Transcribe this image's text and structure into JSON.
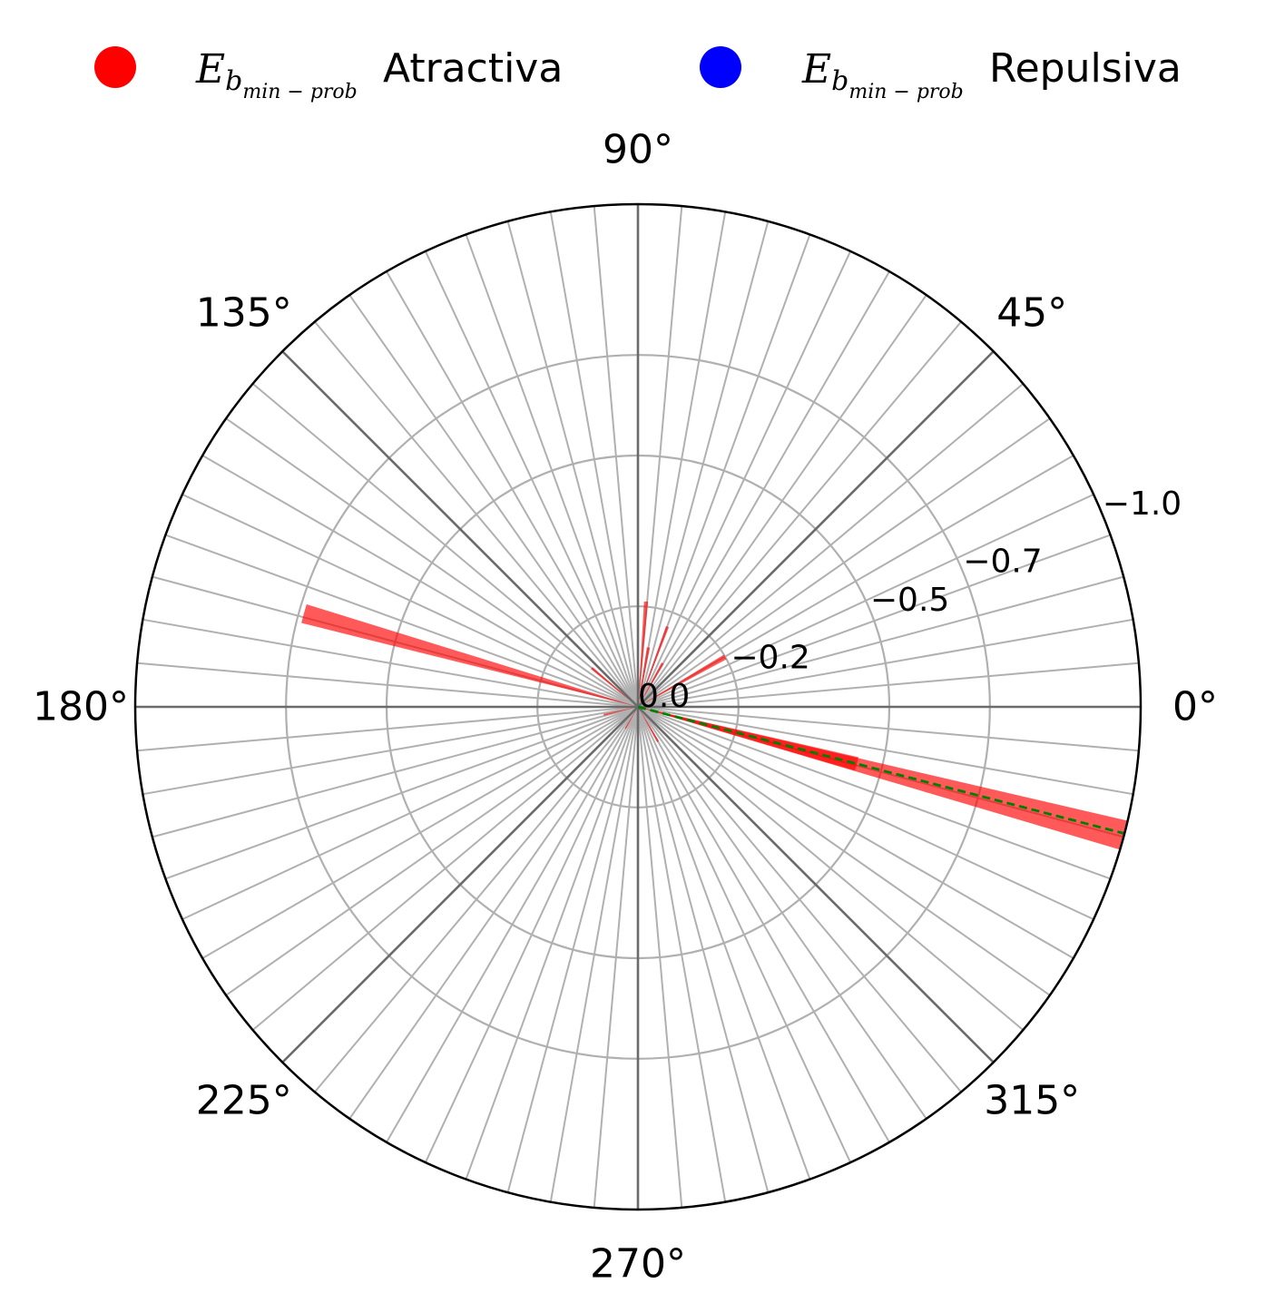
{
  "legend": {
    "items": [
      {
        "symbol_base": "E",
        "symbol_sub1": "b",
        "symbol_sub2": "min − prob",
        "label": "Atractiva",
        "color": "#ff0000"
      },
      {
        "symbol_base": "E",
        "symbol_sub1": "b",
        "symbol_sub2": "min − prob",
        "label": "Repulsiva",
        "color": "#0000ff"
      }
    ]
  },
  "chart_data": {
    "type": "polar-bar",
    "theta_unit": "degrees",
    "theta_tick_labels": [
      "0°",
      "45°",
      "90°",
      "135°",
      "180°",
      "225°",
      "270°",
      "315°"
    ],
    "theta_ticks": [
      0,
      45,
      90,
      135,
      180,
      225,
      270,
      315
    ],
    "theta_minor_grid_step": 5,
    "r_tick_labels": [
      "0.0",
      "−0.2",
      "−0.5",
      "−0.7",
      "−1.0"
    ],
    "r_ticks": [
      0.0,
      -0.2,
      -0.5,
      -0.7,
      -1.0
    ],
    "r_axis_label_angle": 22.5,
    "rlim": [
      0.0,
      -1.0
    ],
    "grid": true,
    "legend_position": "top",
    "bar_color": "#ff0000",
    "bar_alpha": 0.65,
    "series": [
      {
        "name": "Atractiva",
        "bars": [
          {
            "theta": -14.8,
            "width": 3.4,
            "r": -1.0
          },
          {
            "theta": -14.6,
            "width": 3.5,
            "r": -0.45
          },
          {
            "theta": 164.4,
            "width": 3.2,
            "r": -0.69
          },
          {
            "theta": 85.6,
            "width": 2.2,
            "r": -0.21
          },
          {
            "theta": 69.8,
            "width": 2.0,
            "r": -0.17
          },
          {
            "theta": 29.8,
            "width": 3.0,
            "r": -0.2
          },
          {
            "theta": 80.0,
            "width": 3.0,
            "r": -0.12
          },
          {
            "theta": 60.5,
            "width": 3.0,
            "r": -0.1
          },
          {
            "theta": 140.0,
            "width": 2.5,
            "r": -0.12
          },
          {
            "theta": 45.0,
            "width": 3.0,
            "r": -0.08
          },
          {
            "theta": 193.0,
            "width": 3.0,
            "r": -0.07
          },
          {
            "theta": 240.0,
            "width": 3.0,
            "r": -0.05
          },
          {
            "theta": 300.0,
            "width": 3.0,
            "r": -0.08
          }
        ]
      },
      {
        "name": "Repulsiva",
        "bars": []
      }
    ],
    "reference_line": {
      "theta": -14.6,
      "r": -1.0,
      "color": "#008000",
      "style": "dashed"
    }
  }
}
